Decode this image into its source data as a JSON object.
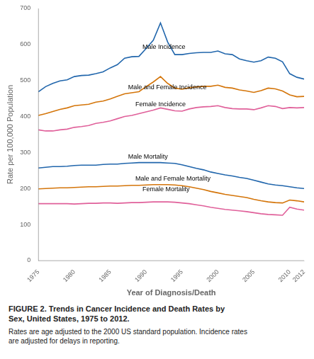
{
  "chart_data": {
    "type": "line",
    "title": [
      "FIGURE 2. Trends in Cancer Incidence and Death Rates by",
      "Sex, United States, 1975 to 2012."
    ],
    "subtitle": [
      "Rates are age adjusted to the 2000 US standard population. Incidence rates",
      "are adjusted for delays in reporting."
    ],
    "xlabel": "Year of Diagnosis/Death",
    "ylabel": "Rate per 100,000 Population",
    "x": [
      1975,
      1976,
      1977,
      1978,
      1979,
      1980,
      1981,
      1982,
      1983,
      1984,
      1985,
      1986,
      1987,
      1988,
      1989,
      1990,
      1991,
      1992,
      1993,
      1994,
      1995,
      1996,
      1997,
      1998,
      1999,
      2000,
      2001,
      2002,
      2003,
      2004,
      2005,
      2006,
      2007,
      2008,
      2009,
      2010,
      2011,
      2012
    ],
    "series": [
      {
        "name": "Male Incidence",
        "color": "#2166ac",
        "values": [
          469,
          483,
          492,
          499,
          502,
          511,
          514,
          515,
          519,
          524,
          535,
          544,
          562,
          566,
          567,
          589,
          612,
          660,
          607,
          572,
          572,
          575,
          577,
          578,
          578,
          582,
          574,
          572,
          560,
          555,
          551,
          555,
          565,
          562,
          552,
          519,
          509,
          504
        ]
      },
      {
        "name": "Male and Female Incidence",
        "color": "#d4750a",
        "values": [
          403,
          408,
          414,
          420,
          424,
          430,
          432,
          434,
          440,
          443,
          449,
          456,
          463,
          466,
          469,
          483,
          496,
          511,
          492,
          479,
          476,
          480,
          482,
          484,
          484,
          487,
          481,
          479,
          474,
          471,
          467,
          472,
          479,
          477,
          471,
          460,
          455,
          456
        ]
      },
      {
        "name": "Female Incidence",
        "color": "#e0609a",
        "values": [
          363,
          360,
          360,
          363,
          365,
          370,
          372,
          375,
          381,
          384,
          388,
          394,
          400,
          403,
          408,
          413,
          418,
          424,
          420,
          416,
          415,
          421,
          425,
          427,
          428,
          430,
          425,
          422,
          421,
          421,
          419,
          424,
          430,
          428,
          422,
          425,
          424,
          425
        ]
      },
      {
        "name": "Male Mortality",
        "color": "#2166ac",
        "values": [
          257,
          259,
          261,
          261,
          262,
          264,
          265,
          265,
          265,
          267,
          268,
          268,
          270,
          271,
          272,
          272,
          272,
          272,
          271,
          270,
          266,
          261,
          256,
          252,
          246,
          242,
          238,
          235,
          231,
          228,
          223,
          218,
          213,
          210,
          208,
          205,
          202,
          200
        ]
      },
      {
        "name": "Male and Female Mortality",
        "color": "#d4750a",
        "values": [
          199,
          200,
          201,
          202,
          202,
          203,
          204,
          205,
          205,
          206,
          207,
          207,
          208,
          209,
          209,
          210,
          211,
          211,
          211,
          210,
          208,
          205,
          201,
          197,
          192,
          188,
          184,
          181,
          178,
          175,
          170,
          166,
          163,
          161,
          160,
          168,
          166,
          163
        ]
      },
      {
        "name": "Female Mortality",
        "color": "#e0609a",
        "values": [
          158,
          158,
          158,
          158,
          158,
          157,
          158,
          159,
          159,
          160,
          160,
          159,
          160,
          161,
          161,
          162,
          163,
          163,
          163,
          162,
          160,
          158,
          155,
          152,
          148,
          145,
          142,
          140,
          138,
          136,
          133,
          130,
          128,
          127,
          126,
          148,
          143,
          140
        ]
      }
    ],
    "annotations": [
      {
        "text": "Male Incidence",
        "x": 1989.5,
        "y": 583
      },
      {
        "text": "Male and Female Incidence",
        "x": 1987.5,
        "y": 472
      },
      {
        "text": "Female Incidence",
        "x": 1988.5,
        "y": 424
      },
      {
        "text": "Male Mortality",
        "x": 1987.5,
        "y": 279
      },
      {
        "text": "Male and Female Mortality",
        "x": 1988.5,
        "y": 219
      },
      {
        "text": "Female Mortality",
        "x": 1989.5,
        "y": 188
      }
    ],
    "xlim": [
      1975,
      2012
    ],
    "xticks": [
      1975,
      1980,
      1985,
      1990,
      1995,
      2000,
      2005,
      2010,
      2012
    ],
    "ylim": [
      0,
      700
    ],
    "yticks": [
      0,
      100,
      200,
      300,
      400,
      500,
      600,
      700
    ],
    "grid": false
  }
}
